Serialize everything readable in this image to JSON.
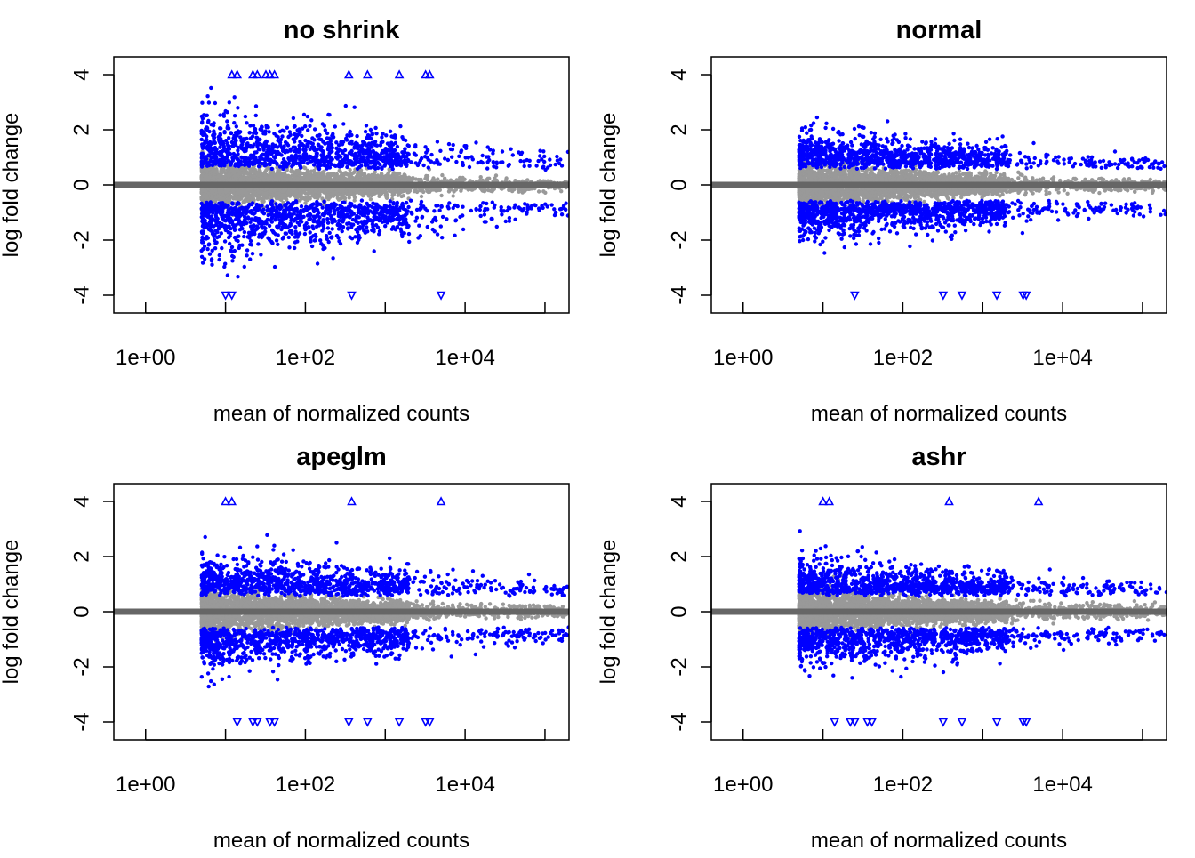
{
  "colors": {
    "significant": "#0000ff",
    "nonsignificant": "#999999",
    "zero_line": "#666666",
    "frame": "#000000"
  },
  "chart_data": [
    {
      "type": "scatter",
      "title": "no shrink",
      "xlabel": "mean of normalized counts",
      "ylabel": "log fold change",
      "x_scale": "log10",
      "xlim": [
        0.4,
        200000
      ],
      "ylim": [
        -4,
        4
      ],
      "x_ticks": [
        "1e+00",
        "1e+02",
        "1e+04"
      ],
      "y_ticks": [
        "-4",
        "-2",
        "0",
        "2",
        "4"
      ],
      "horizontal_line": 0,
      "significant_spread": 2.0,
      "clipped_points": [
        {
          "x": 12,
          "y": 4
        },
        {
          "x": 14,
          "y": 4
        },
        {
          "x": 22,
          "y": 4
        },
        {
          "x": 25,
          "y": 4
        },
        {
          "x": 32,
          "y": 4
        },
        {
          "x": 36,
          "y": 4
        },
        {
          "x": 41,
          "y": 4
        },
        {
          "x": 350,
          "y": 4
        },
        {
          "x": 600,
          "y": 4
        },
        {
          "x": 1500,
          "y": 4
        },
        {
          "x": 3200,
          "y": 4
        },
        {
          "x": 3600,
          "y": 4
        },
        {
          "x": 10,
          "y": -4
        },
        {
          "x": 12,
          "y": -4
        },
        {
          "x": 380,
          "y": -4
        },
        {
          "x": 5000,
          "y": -4
        }
      ]
    },
    {
      "type": "scatter",
      "title": "normal",
      "xlabel": "mean of normalized counts",
      "ylabel": "log fold change",
      "x_scale": "log10",
      "xlim": [
        0.4,
        200000
      ],
      "ylim": [
        -4,
        4
      ],
      "x_ticks": [
        "1e+00",
        "1e+02",
        "1e+04"
      ],
      "y_ticks": [
        "-4",
        "-2",
        "0",
        "2",
        "4"
      ],
      "horizontal_line": 0,
      "significant_spread": 1.3,
      "clipped_points": [
        {
          "x": 25,
          "y": -4
        },
        {
          "x": 320,
          "y": -4
        },
        {
          "x": 550,
          "y": -4
        },
        {
          "x": 1500,
          "y": -4
        },
        {
          "x": 3200,
          "y": -4
        },
        {
          "x": 3500,
          "y": -4
        }
      ]
    },
    {
      "type": "scatter",
      "title": "apeglm",
      "xlabel": "mean of normalized counts",
      "ylabel": "log fold change",
      "x_scale": "log10",
      "xlim": [
        0.4,
        200000
      ],
      "ylim": [
        -4,
        4
      ],
      "x_ticks": [
        "1e+00",
        "1e+02",
        "1e+04"
      ],
      "y_ticks": [
        "-4",
        "-2",
        "0",
        "2",
        "4"
      ],
      "horizontal_line": 0,
      "significant_spread": 1.4,
      "clipped_points": [
        {
          "x": 10,
          "y": 4
        },
        {
          "x": 12,
          "y": 4
        },
        {
          "x": 380,
          "y": 4
        },
        {
          "x": 5000,
          "y": 4
        },
        {
          "x": 14,
          "y": -4
        },
        {
          "x": 22,
          "y": -4
        },
        {
          "x": 25,
          "y": -4
        },
        {
          "x": 36,
          "y": -4
        },
        {
          "x": 41,
          "y": -4
        },
        {
          "x": 350,
          "y": -4
        },
        {
          "x": 600,
          "y": -4
        },
        {
          "x": 1500,
          "y": -4
        },
        {
          "x": 3200,
          "y": -4
        },
        {
          "x": 3600,
          "y": -4
        }
      ]
    },
    {
      "type": "scatter",
      "title": "ashr",
      "xlabel": "mean of normalized counts",
      "ylabel": "log fold change",
      "x_scale": "log10",
      "xlim": [
        0.4,
        200000
      ],
      "ylim": [
        -4,
        4
      ],
      "x_ticks": [
        "1e+00",
        "1e+02",
        "1e+04"
      ],
      "y_ticks": [
        "-4",
        "-2",
        "0",
        "2",
        "4"
      ],
      "horizontal_line": 0,
      "significant_spread": 1.3,
      "clipped_points": [
        {
          "x": 10,
          "y": 4
        },
        {
          "x": 12,
          "y": 4
        },
        {
          "x": 380,
          "y": 4
        },
        {
          "x": 5000,
          "y": 4
        },
        {
          "x": 14,
          "y": -4
        },
        {
          "x": 22,
          "y": -4
        },
        {
          "x": 25,
          "y": -4
        },
        {
          "x": 36,
          "y": -4
        },
        {
          "x": 41,
          "y": -4
        },
        {
          "x": 320,
          "y": -4
        },
        {
          "x": 550,
          "y": -4
        },
        {
          "x": 1500,
          "y": -4
        },
        {
          "x": 3200,
          "y": -4
        },
        {
          "x": 3500,
          "y": -4
        }
      ]
    }
  ]
}
